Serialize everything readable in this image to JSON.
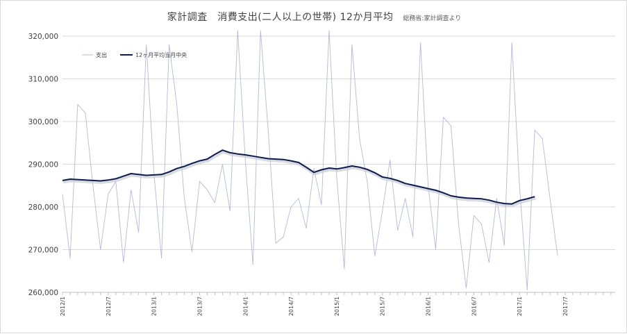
{
  "chart_data": {
    "type": "line",
    "title": "家計調査　消費支出(二人以上の世帯) 12か月平均",
    "source": "総務省:家計調査より",
    "ylim": [
      260000,
      320000
    ],
    "yticks": [
      "260,000",
      "270,000",
      "280,000",
      "290,000",
      "300,000",
      "310,000",
      "320,000"
    ],
    "xtick_labels": [
      "2012/1",
      "2012/7",
      "2013/1",
      "2013/7",
      "2014/1",
      "2014/7",
      "2015/1",
      "2015/7",
      "2016/1",
      "2016/7",
      "2017/1",
      "2017/7"
    ],
    "grid": true,
    "legend_position": "top-left",
    "series": [
      {
        "name": "支出",
        "color": "#b4b9d6",
        "values": [
          283000,
          268000,
          304000,
          302000,
          285000,
          270000,
          283000,
          286000,
          267000,
          284000,
          274000,
          318000,
          288000,
          268000,
          318000,
          304000,
          282000,
          269500,
          286000,
          284000,
          281000,
          290000,
          279000,
          322000,
          291000,
          266500,
          322000,
          298000,
          271500,
          273000,
          280000,
          282000,
          275000,
          289000,
          280500,
          322000,
          287000,
          265500,
          318000,
          296000,
          286000,
          268500,
          279000,
          291000,
          274500,
          282000,
          273000,
          318500,
          285000,
          270000,
          301000,
          299000,
          276000,
          261000,
          278000,
          276000,
          267000,
          282000,
          271000,
          318500,
          285000,
          260500,
          298000,
          296000,
          282000,
          268500
        ]
      },
      {
        "name": "12ヶ月平均当月中央",
        "color": "#0c1a4d",
        "values": [
          286200,
          286500,
          286400,
          286300,
          286200,
          286100,
          286300,
          286600,
          287200,
          287800,
          287600,
          287400,
          287500,
          287600,
          288200,
          289000,
          289500,
          290200,
          290800,
          291200,
          292300,
          293300,
          292700,
          292400,
          292200,
          291900,
          291600,
          291300,
          291200,
          291100,
          290800,
          290400,
          289300,
          288100,
          288700,
          289100,
          288900,
          289200,
          289600,
          289300,
          288800,
          288000,
          287000,
          286700,
          286200,
          285500,
          285100,
          284700,
          284300,
          283900,
          283300,
          282600,
          282300,
          282100,
          282000,
          281900,
          281600,
          281100,
          280800,
          280700,
          281500,
          281900,
          282400
        ]
      }
    ]
  }
}
